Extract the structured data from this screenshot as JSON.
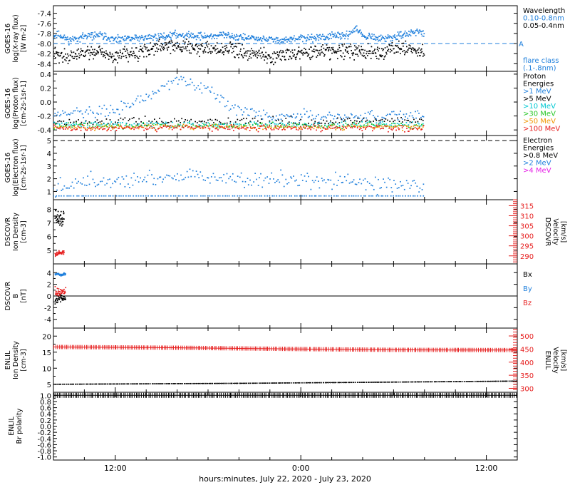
{
  "colors": {
    "black": "#000000",
    "blue": "#1e7fdc",
    "cyan": "#00c8d2",
    "green": "#28c828",
    "orange": "#f09600",
    "red": "#e61e1e",
    "magenta": "#e61ee6"
  },
  "xaxis": {
    "label": "hours:minutes, July 22, 2020 - July 23, 2020",
    "ticks": [
      {
        "hour": 12,
        "label": "12:00"
      },
      {
        "hour": 24,
        "label": "0:00"
      },
      {
        "hour": 36,
        "label": "12:00"
      }
    ],
    "range_hours": [
      8,
      38
    ],
    "data_end_hour": 32
  },
  "chart_data": [
    {
      "id": "xray",
      "type": "scatter",
      "ylabel_lines": [
        "GOES-16",
        "log(X-ray flux)",
        "[W m-2]"
      ],
      "ylim": [
        -8.55,
        -7.25
      ],
      "yticks": [
        -8.4,
        -8.2,
        -8.0,
        -7.8,
        -7.6,
        -7.4
      ],
      "ytick_labels": [
        "-8.4",
        "-8.2",
        "-8.0",
        "-7.8",
        "-7.6",
        "-7.4"
      ],
      "threshold": {
        "value": -8.0,
        "label": "A",
        "color": "blue"
      },
      "right_legend": [
        {
          "text": "Wavelength",
          "color": "black"
        },
        {
          "text": "0.10-0.8nm",
          "color": "blue"
        },
        {
          "text": "0.05-0.4nm",
          "color": "black"
        },
        {
          "text": "flare class",
          "color": "blue"
        },
        {
          "text": "(.1-.8nm)",
          "color": "blue"
        }
      ],
      "series": [
        {
          "name": "0.10-0.8nm",
          "color": "blue",
          "knots": [
            [
              8,
              -7.86
            ],
            [
              8.3,
              -7.82
            ],
            [
              9,
              -7.93
            ],
            [
              10,
              -7.86
            ],
            [
              11,
              -7.83
            ],
            [
              12,
              -7.93
            ],
            [
              13,
              -7.9
            ],
            [
              14,
              -7.88
            ],
            [
              15,
              -7.86
            ],
            [
              16,
              -7.82
            ],
            [
              17,
              -7.84
            ],
            [
              18,
              -7.86
            ],
            [
              19,
              -7.83
            ],
            [
              20,
              -7.87
            ],
            [
              21,
              -7.9
            ],
            [
              22,
              -7.92
            ],
            [
              23,
              -7.93
            ],
            [
              24,
              -7.9
            ],
            [
              25,
              -7.88
            ],
            [
              26,
              -7.86
            ],
            [
              27,
              -7.84
            ],
            [
              27.6,
              -7.7
            ],
            [
              28,
              -7.86
            ],
            [
              29,
              -7.9
            ],
            [
              30,
              -7.88
            ],
            [
              31,
              -7.8
            ],
            [
              31.5,
              -7.75
            ],
            [
              32,
              -7.8
            ]
          ],
          "noise": 0.035,
          "count": 720
        },
        {
          "name": "0.05-0.4nm",
          "color": "black",
          "knots": [
            [
              8,
              -8.2
            ],
            [
              9,
              -8.25
            ],
            [
              10,
              -8.2
            ],
            [
              11,
              -8.15
            ],
            [
              12,
              -8.25
            ],
            [
              13,
              -8.2
            ],
            [
              14,
              -8.12
            ],
            [
              15,
              -8.06
            ],
            [
              16,
              -8.03
            ],
            [
              17,
              -8.08
            ],
            [
              18,
              -8.12
            ],
            [
              19,
              -8.1
            ],
            [
              20,
              -8.15
            ],
            [
              21,
              -8.2
            ],
            [
              22,
              -8.23
            ],
            [
              23,
              -8.22
            ],
            [
              24,
              -8.2
            ],
            [
              25,
              -8.18
            ],
            [
              26,
              -8.15
            ],
            [
              27,
              -8.12
            ],
            [
              28,
              -8.18
            ],
            [
              29,
              -8.18
            ],
            [
              30,
              -8.1
            ],
            [
              31,
              -8.1
            ],
            [
              32,
              -8.15
            ]
          ],
          "noise": 0.07,
          "count": 720
        }
      ]
    },
    {
      "id": "protons",
      "type": "scatter",
      "ylabel_lines": [
        "GOES-16",
        "log(Proton flux)",
        "[cm-2s-1sr-1]"
      ],
      "ylim": [
        -0.48,
        0.44
      ],
      "yticks": [
        -0.4,
        -0.2,
        0.0,
        0.2,
        0.4
      ],
      "ytick_labels": [
        "-0.4",
        "-0.2",
        "0.0",
        "0.2",
        "0.4"
      ],
      "right_legend": [
        {
          "text": "Proton",
          "color": "black"
        },
        {
          "text": "Energies",
          "color": "black"
        },
        {
          "text": ">1 MeV",
          "color": "blue"
        },
        {
          "text": ">5 MeV",
          "color": "black"
        },
        {
          "text": ">10 MeV",
          "color": "cyan"
        },
        {
          "text": ">30 MeV",
          "color": "green"
        },
        {
          "text": ">50 MeV",
          "color": "orange"
        },
        {
          "text": ">100 MeV",
          "color": "red"
        }
      ],
      "series": [
        {
          "name": ">1 MeV",
          "color": "blue",
          "knots": [
            [
              8,
              -0.17
            ],
            [
              10,
              -0.15
            ],
            [
              12,
              -0.12
            ],
            [
              14,
              0.05
            ],
            [
              15,
              0.2
            ],
            [
              16,
              0.31
            ],
            [
              17,
              0.28
            ],
            [
              18,
              0.15
            ],
            [
              19,
              0.0
            ],
            [
              20,
              -0.12
            ],
            [
              22,
              -0.2
            ],
            [
              26,
              -0.2
            ],
            [
              30,
              -0.2
            ],
            [
              32,
              -0.2
            ]
          ],
          "noise": 0.04,
          "count": 260
        },
        {
          "name": ">5 MeV",
          "color": "black",
          "knots": [
            [
              8,
              -0.28
            ],
            [
              12,
              -0.28
            ],
            [
              16,
              -0.27
            ],
            [
              20,
              -0.28
            ],
            [
              24,
              -0.28
            ],
            [
              28,
              -0.27
            ],
            [
              32,
              -0.28
            ]
          ],
          "noise": 0.03,
          "count": 200
        },
        {
          "name": ">10 MeV",
          "color": "cyan",
          "knots": [
            [
              8,
              -0.32
            ],
            [
              32,
              -0.32
            ]
          ],
          "noise": 0.02,
          "count": 200
        },
        {
          "name": ">30 MeV",
          "color": "green",
          "knots": [
            [
              8,
              -0.34
            ],
            [
              32,
              -0.34
            ]
          ],
          "noise": 0.02,
          "count": 200
        },
        {
          "name": ">50 MeV",
          "color": "orange",
          "knots": [
            [
              8,
              -0.36
            ],
            [
              32,
              -0.36
            ]
          ],
          "noise": 0.02,
          "count": 220
        },
        {
          "name": ">100 MeV",
          "color": "red",
          "knots": [
            [
              8,
              -0.37
            ],
            [
              32,
              -0.37
            ]
          ],
          "noise": 0.022,
          "count": 260
        }
      ]
    },
    {
      "id": "electrons",
      "type": "scatter",
      "ylabel_lines": [
        "GOES-16",
        "log(Electron flux)",
        "[cm-2s-1sr-1]"
      ],
      "ylim": [
        0.35,
        5.4
      ],
      "yticks": [
        1,
        2,
        3,
        4,
        5
      ],
      "ytick_labels": [
        "1",
        "2",
        "3",
        "4",
        "5"
      ],
      "threshold": {
        "value": 5.0,
        "label": "",
        "color": "black"
      },
      "right_legend": [
        {
          "text": "Electron",
          "color": "black"
        },
        {
          "text": "Energies",
          "color": "black"
        },
        {
          "text": ">0.8 MeV",
          "color": "black"
        },
        {
          "text": ">2 MeV",
          "color": "blue"
        },
        {
          "text": ">4 MeV",
          "color": "magenta"
        }
      ],
      "series": [
        {
          "name": ">2 MeV",
          "color": "blue",
          "knots": [
            [
              8,
              1.2
            ],
            [
              9,
              1.5
            ],
            [
              10,
              1.8
            ],
            [
              12,
              2.0
            ],
            [
              14,
              2.1
            ],
            [
              16,
              2.2
            ],
            [
              18,
              2.2
            ],
            [
              20,
              2.1
            ],
            [
              22,
              1.9
            ],
            [
              24,
              1.8
            ],
            [
              26,
              1.7
            ],
            [
              28,
              1.6
            ],
            [
              30,
              1.5
            ],
            [
              32,
              1.4
            ]
          ],
          "noise": 0.32,
          "count": 240
        },
        {
          "name": ">2 MeV floor",
          "color": "blue",
          "knots": [
            [
              8,
              0.65
            ],
            [
              32,
              0.65
            ]
          ],
          "noise": 0.0,
          "count": 150
        }
      ]
    },
    {
      "id": "dscovr_density",
      "type": "scatter",
      "ylabel_lines": [
        "DSCOVR",
        "Ion Density",
        "[cm-3]"
      ],
      "ylim": [
        4.0,
        8.7
      ],
      "yticks": [
        5,
        6,
        7,
        8
      ],
      "ytick_labels": [
        "5",
        "6",
        "7",
        "8"
      ],
      "right_axis": {
        "label_lines": [
          "DSCOVR",
          "Velocity",
          "[km/s]"
        ],
        "ylim": [
          286,
          318
        ],
        "ticks": [
          290,
          295,
          300,
          305,
          310,
          315
        ],
        "tick_labels": [
          "290",
          "295",
          "300",
          "305",
          "310",
          "315"
        ],
        "color": "red"
      },
      "series": [
        {
          "name": "density",
          "color": "black",
          "knots": [
            [
              8.1,
              7.6
            ],
            [
              8.4,
              7.2
            ],
            [
              8.7,
              7.4
            ]
          ],
          "noise": 0.25,
          "count": 40
        },
        {
          "name": "velocity",
          "color": "red",
          "axis": "right",
          "knots": [
            [
              8.1,
              290.5
            ],
            [
              8.4,
              291.5
            ],
            [
              8.7,
              292
            ]
          ],
          "noise": 0.6,
          "count": 35
        }
      ]
    },
    {
      "id": "dscovr_b",
      "type": "scatter",
      "ylabel_lines": [
        "DSCOVR",
        "B",
        "[nT]"
      ],
      "ylim": [
        -5.5,
        5.5
      ],
      "yticks": [
        -4,
        -2,
        0,
        2,
        4
      ],
      "ytick_labels": [
        "-4",
        "-2",
        "0",
        "2",
        "4"
      ],
      "zero_line": true,
      "right_legend": [
        {
          "text": "Bx",
          "color": "black"
        },
        {
          "text": "By",
          "color": "blue"
        },
        {
          "text": "Bz",
          "color": "red"
        }
      ],
      "series": [
        {
          "name": "Bx",
          "color": "black",
          "knots": [
            [
              8.1,
              -0.6
            ],
            [
              8.5,
              -0.3
            ],
            [
              8.8,
              -0.5
            ]
          ],
          "noise": 0.35,
          "count": 40
        },
        {
          "name": "By",
          "color": "blue",
          "knots": [
            [
              8.1,
              3.8
            ],
            [
              8.5,
              3.6
            ],
            [
              8.8,
              3.8
            ]
          ],
          "noise": 0.12,
          "count": 35
        },
        {
          "name": "Bz",
          "color": "red",
          "knots": [
            [
              8.1,
              1.0
            ],
            [
              8.5,
              0.6
            ],
            [
              8.8,
              0.9
            ]
          ],
          "noise": 0.3,
          "count": 35
        }
      ]
    },
    {
      "id": "enlil_density",
      "type": "line",
      "ylabel_lines": [
        "ENLIL",
        "Ion Density",
        "[cm-3]"
      ],
      "ylim": [
        2.5,
        22.5
      ],
      "yticks": [
        5,
        10,
        15,
        20
      ],
      "ytick_labels": [
        "5",
        "10",
        "15",
        "20"
      ],
      "right_axis": {
        "label_lines": [
          "ENLIL",
          "Velocity",
          "[km/s]"
        ],
        "ylim": [
          285,
          530
        ],
        "ticks": [
          300,
          350,
          400,
          450,
          500
        ],
        "tick_labels": [
          "300",
          "350",
          "400",
          "450",
          "500"
        ],
        "color": "red"
      },
      "full_range": true,
      "series": [
        {
          "name": "density",
          "color": "black",
          "knots": [
            [
              8,
              5.0
            ],
            [
              20,
              5.3
            ],
            [
              28,
              5.6
            ],
            [
              38,
              6.0
            ]
          ],
          "noise": 0.0,
          "count": 260
        },
        {
          "name": "velocity",
          "color": "red",
          "axis": "right",
          "knots": [
            [
              8,
              458
            ],
            [
              16,
              455
            ],
            [
              24,
              450
            ],
            [
              30,
              447
            ],
            [
              38,
              446
            ]
          ],
          "noise": 0.0,
          "count": 260
        }
      ]
    },
    {
      "id": "enlil_polarity",
      "type": "line",
      "ylabel_lines": [
        "ENLIL",
        "Br polarity"
      ],
      "ylim": [
        -1.1,
        1.1
      ],
      "yticks": [
        -1.0,
        -0.8,
        -0.6,
        -0.4,
        -0.2,
        0.0,
        0.2,
        0.4,
        0.6,
        0.8,
        1.0
      ],
      "ytick_labels": [
        "-1.0",
        "-0.8",
        "-0.6",
        "-0.4",
        "-0.2",
        "0.0",
        "0.2",
        "0.4",
        "0.6",
        "0.8",
        "1.0"
      ],
      "full_range": true,
      "series": [
        {
          "name": "polarity",
          "color": "black",
          "knots": [
            [
              8,
              1.0
            ],
            [
              38,
              1.0
            ]
          ],
          "noise": 0.0,
          "count": 260
        }
      ]
    }
  ]
}
